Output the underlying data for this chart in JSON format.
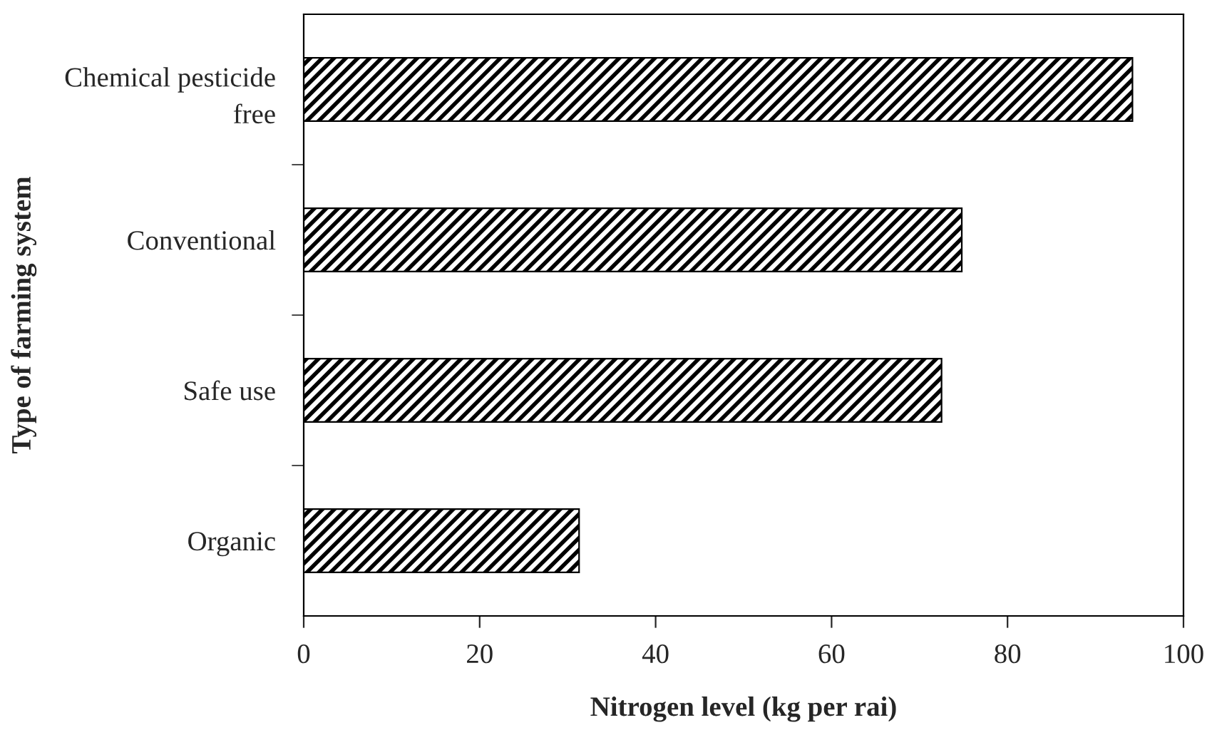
{
  "chart_data": {
    "type": "bar",
    "orientation": "horizontal",
    "categories": [
      "Chemical pesticide\nfree",
      "Conventional",
      "Safe use",
      "Organic"
    ],
    "values": [
      94.2,
      74.8,
      72.5,
      31.3
    ],
    "color": "#000000",
    "xlim": [
      0,
      100
    ],
    "xticks": [
      0,
      20,
      40,
      60,
      80,
      100
    ],
    "xlabel": "Nitrogen level (kg per rai)",
    "ylabel": "Type of farming system",
    "grid": false
  }
}
